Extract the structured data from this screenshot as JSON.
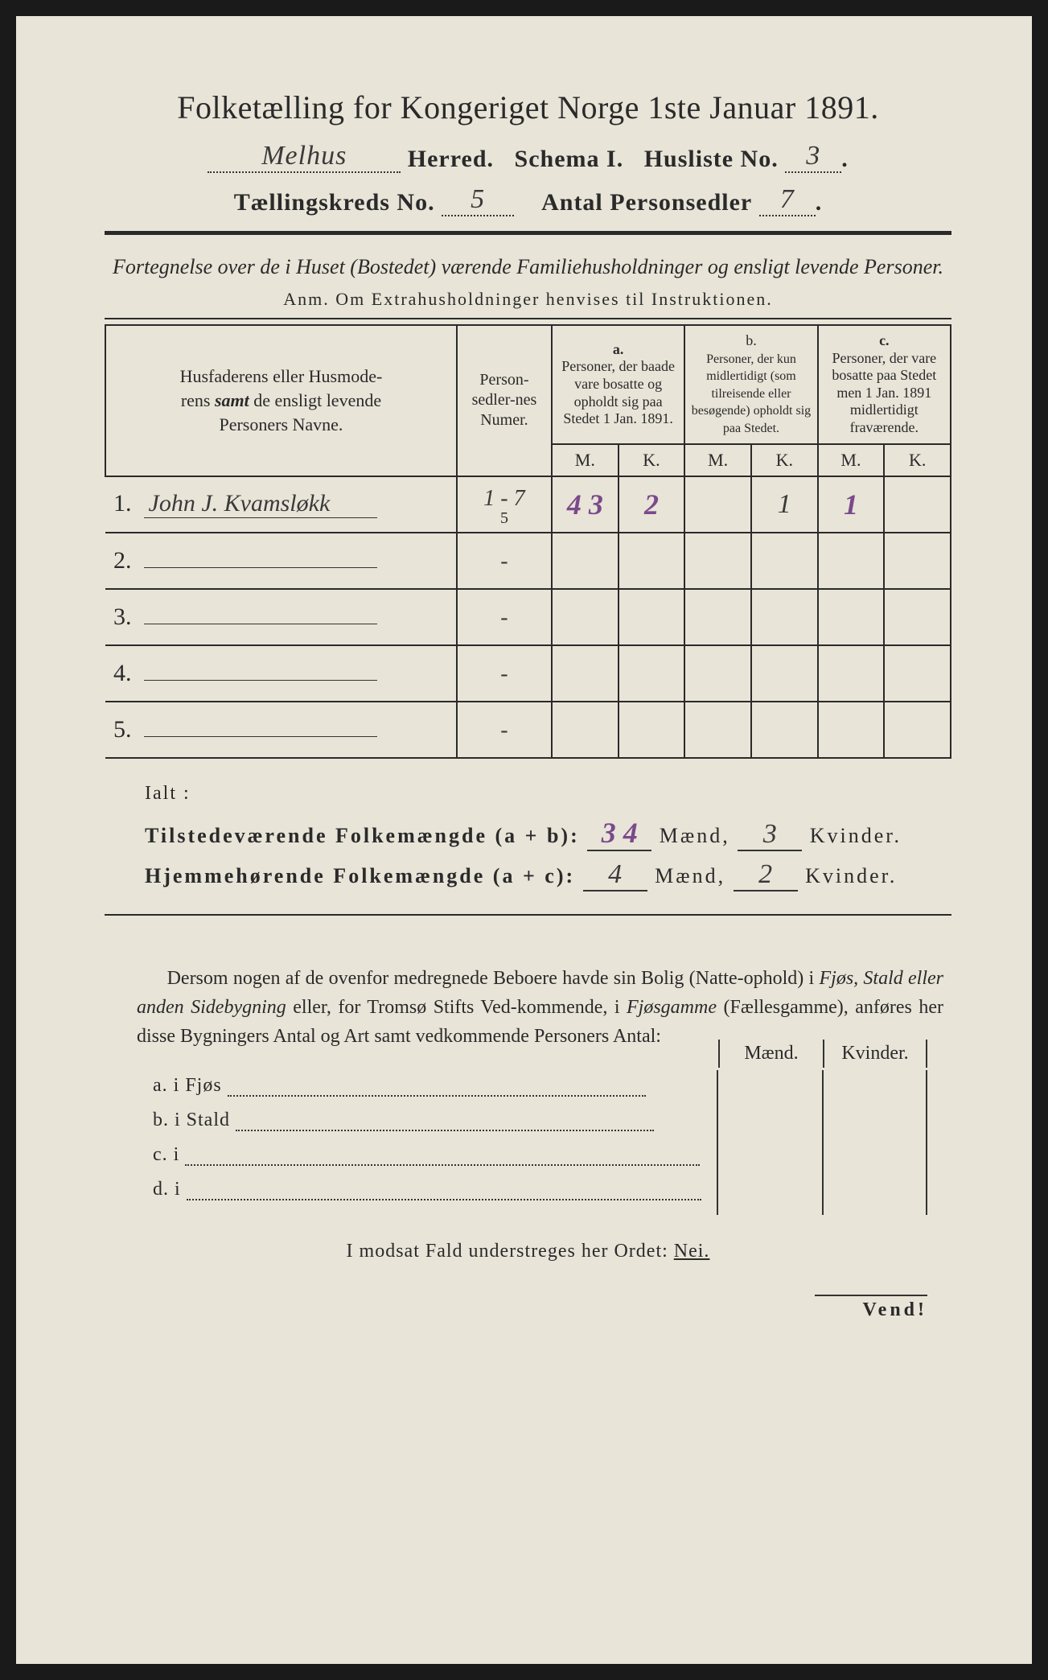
{
  "title": "Folketælling for Kongeriget Norge 1ste Januar 1891.",
  "herred_value": "Melhus",
  "herred_label": "Herred.",
  "schema_label": "Schema I.",
  "husliste_label": "Husliste No.",
  "husliste_value": "3",
  "kreds_label": "Tællingskreds No.",
  "kreds_value": "5",
  "antal_label": "Antal Personsedler",
  "antal_value": "7",
  "subtitle": "Fortegnelse over de i Huset (Bostedet) værende Familiehusholdninger og ensligt levende Personer.",
  "anm": "Anm. Om Extrahusholdninger henvises til Instruktionen.",
  "table": {
    "col_name": "Husfaderens eller Husmoderens samt de ensligt levende Personers Navne.",
    "col_num": "Person-sedler-nes Numer.",
    "group_a_tag": "a.",
    "group_a": "Personer, der baade vare bosatte og opholdt sig paa Stedet 1 Jan. 1891.",
    "group_b_tag": "b.",
    "group_b": "Personer, der kun midlertidigt (som tilreisende eller besøgende) opholdt sig paa Stedet.",
    "group_c_tag": "c.",
    "group_c": "Personer, der vare bosatte paa Stedet men 1 Jan. 1891 midlertidigt fraværende.",
    "M": "M.",
    "K": "K.",
    "rows": [
      {
        "n": "1.",
        "name": "John J. Kvamsløkk",
        "num": "1 - 7",
        "aM_corr": "5",
        "aM": "4 3",
        "aK": "2",
        "bM": "",
        "bK": "1",
        "cM": "1",
        "cK": ""
      },
      {
        "n": "2.",
        "name": "",
        "num": "-",
        "aM": "",
        "aK": "",
        "bM": "",
        "bK": "",
        "cM": "",
        "cK": ""
      },
      {
        "n": "3.",
        "name": "",
        "num": "-",
        "aM": "",
        "aK": "",
        "bM": "",
        "bK": "",
        "cM": "",
        "cK": ""
      },
      {
        "n": "4.",
        "name": "",
        "num": "-",
        "aM": "",
        "aK": "",
        "bM": "",
        "bK": "",
        "cM": "",
        "cK": ""
      },
      {
        "n": "5.",
        "name": "",
        "num": "-",
        "aM": "",
        "aK": "",
        "bM": "",
        "bK": "",
        "cM": "",
        "cK": ""
      }
    ]
  },
  "ialt": "Ialt :",
  "sum1_label": "Tilstedeværende Folkemængde (a + b):",
  "sum1_m": "3 4",
  "sum1_k": "3",
  "sum2_label": "Hjemmehørende Folkemængde (a + c):",
  "sum2_m": "4",
  "sum2_k": "2",
  "maend": "Mænd,",
  "kvinder": "Kvinder.",
  "para": "Dersom nogen af de ovenfor medregnede Beboere havde sin Bolig (Natteophold) i Fjøs, Stald eller anden Sidebygning eller, for Tromsø Stifts Vedkommende, i Fjøsgamme (Fællesgamme), anføres her disse Bygningers Antal og Art samt vedkommende Personers Antal:",
  "mk_maend": "Mænd.",
  "mk_kvinder": "Kvinder.",
  "housing": {
    "a": "a.  i      Fjøs",
    "b": "b.  i      Stald",
    "c": "c.  i",
    "d": "d.  i"
  },
  "nei": "I modsat Fald understreges her Ordet:",
  "nei_word": "Nei.",
  "vend": "Vend!"
}
